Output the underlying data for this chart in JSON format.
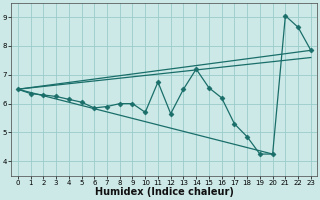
{
  "xlabel": "Humidex (Indice chaleur)",
  "xlim": [
    -0.5,
    23.5
  ],
  "ylim": [
    3.5,
    9.5
  ],
  "xticks": [
    0,
    1,
    2,
    3,
    4,
    5,
    6,
    7,
    8,
    9,
    10,
    11,
    12,
    13,
    14,
    15,
    16,
    17,
    18,
    19,
    20,
    21,
    22,
    23
  ],
  "yticks": [
    4,
    5,
    6,
    7,
    8,
    9
  ],
  "background_color": "#cce9e7",
  "grid_color": "#99ccca",
  "line_color": "#1a6e6a",
  "data_x": [
    0,
    1,
    2,
    3,
    4,
    5,
    6,
    7,
    8,
    9,
    10,
    11,
    12,
    13,
    14,
    15,
    16,
    17,
    18,
    19,
    20,
    21,
    22,
    23
  ],
  "data_y": [
    6.5,
    6.35,
    6.3,
    6.25,
    6.15,
    6.05,
    5.85,
    5.9,
    6.0,
    6.0,
    5.7,
    6.75,
    5.65,
    6.5,
    7.2,
    6.55,
    6.2,
    5.3,
    4.85,
    4.25,
    4.25,
    9.05,
    8.65,
    7.85
  ],
  "line1_x": [
    0,
    23
  ],
  "line1_y": [
    6.5,
    7.85
  ],
  "line2_x": [
    0,
    23
  ],
  "line2_y": [
    6.5,
    7.6
  ],
  "line3_x": [
    0,
    20
  ],
  "line3_y": [
    6.5,
    4.25
  ]
}
